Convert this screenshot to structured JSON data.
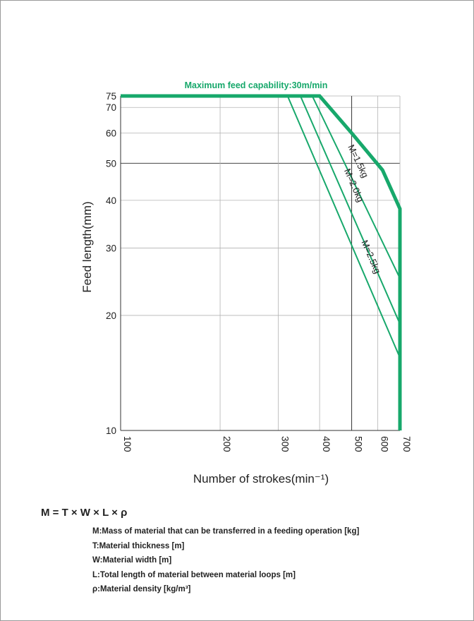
{
  "chart_data": {
    "type": "line",
    "title": "Maximum feed capability:30m/min",
    "xlabel": "Number of strokes(min⁻¹)",
    "ylabel": "Feed length(mm)",
    "x_scale": "log",
    "y_scale": "log",
    "xlim": [
      100,
      700
    ],
    "ylim": [
      10,
      75
    ],
    "x_ticks": [
      100,
      200,
      300,
      400,
      500,
      600,
      700
    ],
    "y_ticks": [
      10,
      20,
      30,
      40,
      50,
      60,
      70,
      75
    ],
    "grid": true,
    "line_color": "#17a86b",
    "series": [
      {
        "kind": "envelope",
        "points": [
          [
            100,
            75
          ],
          [
            400,
            75
          ],
          [
            500,
            60
          ],
          [
            620,
            48
          ],
          [
            700,
            38
          ],
          [
            700,
            10
          ]
        ]
      },
      {
        "name": "M=1.5kg",
        "points": [
          [
            380,
            75
          ],
          [
            700,
            25
          ]
        ]
      },
      {
        "name": "M=2.0kg",
        "points": [
          [
            350,
            75
          ],
          [
            700,
            19
          ]
        ]
      },
      {
        "name": "M=2.5kg",
        "points": [
          [
            320,
            75
          ],
          [
            700,
            15.5
          ]
        ]
      }
    ]
  },
  "formula": "M = T × W × L × ρ",
  "definitions": [
    "M:Mass of material that can be transferred in a feeding operation [kg]",
    "T:Material thickness [m]",
    "W:Material width [m]",
    "L:Total length of material between material loops [m]",
    "ρ:Material density [kg/m³]"
  ]
}
